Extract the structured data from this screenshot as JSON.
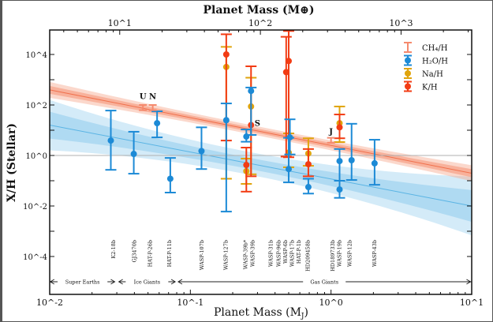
{
  "chart_data": {
    "type": "scatter",
    "xscale": "log",
    "yscale": "log",
    "xlabel": "Planet Mass (M",
    "xlabel_sub": "J",
    "xlabel_close": ")",
    "x2label": "Planet Mass (M⊕)",
    "ylabel": "X/H (Stellar)",
    "xlim": [
      0.01,
      10
    ],
    "ylim": [
      3e-06,
      90000.0
    ],
    "x_ticks": [
      "10^-2",
      "10^-1",
      "10^0",
      "10^1"
    ],
    "x2_ticks": [
      "10^1",
      "10^2",
      "10^3"
    ],
    "y_ticks": [
      "10^-4",
      "10^-2",
      "10^0",
      "10^2",
      "10^4"
    ],
    "reference_line_y": 1,
    "legend": {
      "position": "top-right",
      "entries": [
        {
          "label": "CH₄/H",
          "series": "ch4"
        },
        {
          "label": "H₂O/H",
          "series": "h2o"
        },
        {
          "label": "Na/H",
          "series": "na"
        },
        {
          "label": "K/H",
          "series": "k"
        }
      ]
    },
    "colors": {
      "ch4": "#f58a6e",
      "h2o": "#1c8ad6",
      "na": "#e0a40c",
      "k": "#f23c14",
      "h2o_band": "#9fd3f0",
      "ch4_band": "#f7a88f",
      "reference": "#b0b0b0"
    },
    "fits": [
      {
        "series": "ch4",
        "value_at_1MJ": 2.5,
        "loglog_slope": -1.1
      },
      {
        "series": "h2o",
        "value_at_1MJ": 0.117,
        "loglog_slope": -1.067
      }
    ],
    "series": {
      "ch4": [
        {
          "label": "U",
          "x": 0.046,
          "y": 80,
          "lo": 62,
          "hi": 100
        },
        {
          "label": "N",
          "x": 0.054,
          "y": 80,
          "lo": 62,
          "hi": 100
        },
        {
          "label": "J",
          "x": 1.0,
          "y": 4,
          "lo": 3.2,
          "hi": 5
        }
      ],
      "h2o": [
        {
          "x": 0.0272,
          "y": 3.9,
          "lo": 0.27,
          "hi": 60
        },
        {
          "x": 0.0396,
          "y": 1.15,
          "lo": 0.19,
          "hi": 8.7
        },
        {
          "x": 0.058,
          "y": 19,
          "lo": 5.2,
          "hi": 56
        },
        {
          "x": 0.072,
          "y": 0.12,
          "lo": 0.034,
          "hi": 0.8
        },
        {
          "x": 0.12,
          "y": 1.5,
          "lo": 0.29,
          "hi": 13
        },
        {
          "x": 0.18,
          "y": 25,
          "lo": 0.006,
          "hi": 115
        },
        {
          "x": 0.25,
          "y": 5.6,
          "lo": 3.5,
          "hi": 10.7
        },
        {
          "x": 0.27,
          "y": 360,
          "lo": 6.5,
          "hi": 490
        },
        {
          "x": 0.51,
          "y": 5.2,
          "lo": 1.1,
          "hi": 27
        },
        {
          "x": 0.5,
          "y": 0.29,
          "lo": 0.086,
          "hi": 5
        },
        {
          "x": 0.69,
          "y": 0.056,
          "lo": 0.031,
          "hi": 0.12
        },
        {
          "x": 1.15,
          "y": 0.6,
          "lo": 0.1,
          "hi": 1.8
        },
        {
          "x": 1.15,
          "y": 0.045,
          "lo": 0.021,
          "hi": 0.1
        },
        {
          "x": 1.4,
          "y": 0.65,
          "lo": 0.107,
          "hi": 18
        },
        {
          "x": 2.04,
          "y": 0.49,
          "lo": 0.069,
          "hi": 4.2
        }
      ],
      "na": [
        {
          "x": 0.18,
          "y": 3200,
          "lo": 0.12,
          "hi": 20000
        },
        {
          "x": 0.25,
          "y": 0.24,
          "lo": 0.075,
          "hi": 0.75
        },
        {
          "x": 0.27,
          "y": 87,
          "lo": 0.18,
          "hi": 1200
        },
        {
          "x": 0.5,
          "y": 1.3,
          "lo": 0.34,
          "hi": 7.5
        },
        {
          "x": 0.69,
          "y": 1.2,
          "lo": 0.39,
          "hi": 4.8
        },
        {
          "x": 1.15,
          "y": 19,
          "lo": 3.4,
          "hi": 87
        }
      ],
      "k": [
        {
          "x": 0.18,
          "y": 10000,
          "lo": 3.9,
          "hi": 63000
        },
        {
          "x": 0.25,
          "y": 0.42,
          "lo": 0.037,
          "hi": 2.05
        },
        {
          "x": 0.27,
          "y": 16,
          "lo": 0.15,
          "hi": 3400
        },
        {
          "x": 0.48,
          "y": 2000,
          "lo": 0.9,
          "hi": 50000
        },
        {
          "x": 0.5,
          "y": 5500,
          "lo": 0.85,
          "hi": 85000
        },
        {
          "x": 0.69,
          "y": 0.45,
          "lo": 0.15,
          "hi": 1.8
        },
        {
          "x": 1.15,
          "y": 13,
          "lo": 4.8,
          "hi": 42
        }
      ]
    },
    "annotations": [
      {
        "text": "U",
        "x": 0.046,
        "y": 170
      },
      {
        "text": "N",
        "x": 0.054,
        "y": 170
      },
      {
        "text": "S",
        "x": 0.3,
        "y": 15
      },
      {
        "text": "J",
        "x": 1.0,
        "y": 7
      }
    ],
    "planets": [
      {
        "name": "K2-18b",
        "x": 0.0285
      },
      {
        "name": "GJ3470b",
        "x": 0.04
      },
      {
        "name": "HAT-P-26b",
        "x": 0.052
      },
      {
        "name": "HAT-P-11b",
        "x": 0.071
      },
      {
        "name": "WASP-107b",
        "x": 0.121
      },
      {
        "name": "WASP-127b",
        "x": 0.179
      },
      {
        "name": "WASP-39b*",
        "x": 0.247
      },
      {
        "name": "WASP-39b",
        "x": 0.278
      },
      {
        "name": "WASP-31b",
        "x": 0.374
      },
      {
        "name": "WASP-96b",
        "x": 0.426
      },
      {
        "name": "WASP-6b",
        "x": 0.467
      },
      {
        "name": "WASP-17b",
        "x": 0.504
      },
      {
        "name": "HAT-P-1b",
        "x": 0.552
      },
      {
        "name": "HD209458b",
        "x": 0.687
      },
      {
        "name": "HD189733b",
        "x": 1.03
      },
      {
        "name": "WASP-19b",
        "x": 1.14
      },
      {
        "name": "WASP-12b",
        "x": 1.36
      },
      {
        "name": "WASP-43b",
        "x": 2.04
      }
    ],
    "groups": [
      {
        "label": "Super Earths",
        "from": 0.0101,
        "to": 0.029
      },
      {
        "label": "Ice Giants",
        "from": 0.031,
        "to": 0.078
      },
      {
        "label": "Gas Giants",
        "from": 0.082,
        "to": 9.8
      }
    ]
  }
}
